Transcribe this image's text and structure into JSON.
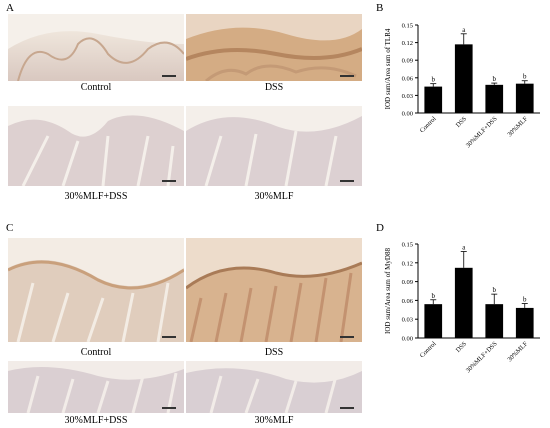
{
  "panels": {
    "A": "A",
    "B": "B",
    "C": "C",
    "D": "D"
  },
  "image_captions": {
    "top": [
      "Control",
      "DSS",
      "30%MLF+DSS",
      "30%MLF"
    ],
    "bottom": [
      "Control",
      "DSS",
      "30%MLF+DSS",
      "30%MLF"
    ]
  },
  "chart_data": [
    {
      "type": "bar",
      "panel": "B",
      "categories": [
        "Control",
        "DSS",
        "30%MLF+DSS",
        "30%MLF"
      ],
      "values": [
        0.045,
        0.117,
        0.048,
        0.05
      ],
      "errors": [
        0.005,
        0.018,
        0.003,
        0.005
      ],
      "letters": [
        "b",
        "a",
        "b",
        "b"
      ],
      "ylabel": "IOD sum/Area sum of TLR4",
      "ylim": [
        0,
        0.15
      ],
      "yticks": [
        "0.00",
        "0.03",
        "0.06",
        "0.09",
        "0.12",
        "0.15"
      ],
      "ytick_values": [
        0,
        0.03,
        0.06,
        0.09,
        0.12,
        0.15
      ],
      "bar_color": "#000000"
    },
    {
      "type": "bar",
      "panel": "D",
      "categories": [
        "Control",
        "DSS",
        "30%MLF+DSS",
        "30%MLF"
      ],
      "values": [
        0.054,
        0.112,
        0.054,
        0.048
      ],
      "errors": [
        0.007,
        0.026,
        0.016,
        0.007
      ],
      "letters": [
        "b",
        "a",
        "b",
        "b"
      ],
      "ylabel": "IOD sum/Area sum of MyD88",
      "ylim": [
        0,
        0.15
      ],
      "yticks": [
        "0.00",
        "0.03",
        "0.06",
        "0.09",
        "0.12",
        "0.15"
      ],
      "ytick_values": [
        0,
        0.03,
        0.06,
        0.09,
        0.12,
        0.15
      ],
      "bar_color": "#000000"
    }
  ]
}
